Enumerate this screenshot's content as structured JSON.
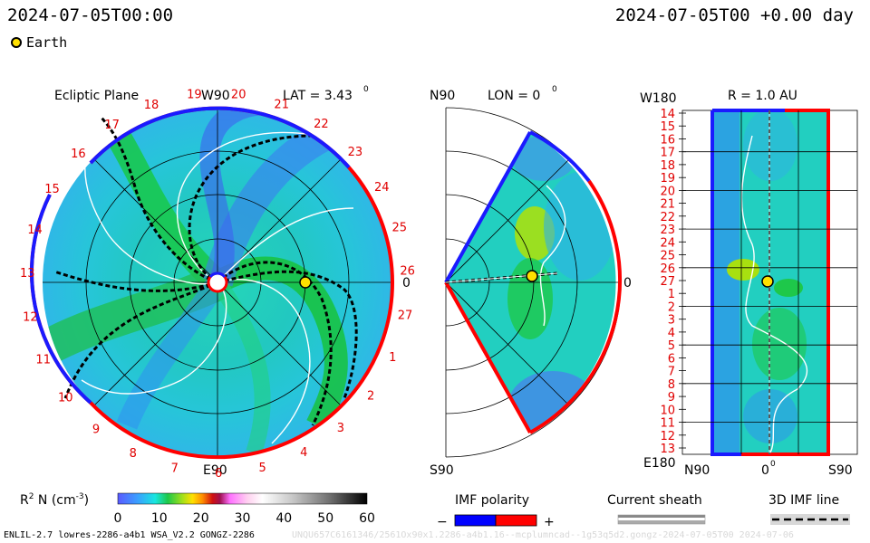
{
  "header": {
    "left_time": "2024-07-05T00:00",
    "right_time": "2024-07-05T00 +0.00 day"
  },
  "legend": {
    "earth_label": "Earth"
  },
  "panels": {
    "ecliptic": {
      "title": "Ecliptic Plane",
      "top_label": "W90",
      "bottom_label": "E90",
      "right_label": "0",
      "lat_label": "LAT = 3.43",
      "degree_mark": "0",
      "rotation_numbers": [
        "19",
        "20",
        "21",
        "22",
        "23",
        "24",
        "25",
        "26",
        "27",
        "1",
        "2",
        "3",
        "4",
        "5",
        "6",
        "7",
        "8",
        "9",
        "10",
        "11",
        "12",
        "13",
        "14",
        "15",
        "16",
        "17",
        "18"
      ]
    },
    "meridional": {
      "top_label": "N90",
      "bottom_label": "S90",
      "lon_label": "LON = 0",
      "right_label": "0",
      "degree_mark": "0"
    },
    "radial": {
      "top_left_label": "W180",
      "r_label": "R = 1.0 AU",
      "bottom_left_label": "E180",
      "x_left": "N90",
      "x_mid": "0",
      "x_right": "S90",
      "degree_mark": "0",
      "y_ticks": [
        "14",
        "15",
        "16",
        "17",
        "18",
        "19",
        "20",
        "21",
        "22",
        "23",
        "24",
        "25",
        "26",
        "27",
        "1",
        "2",
        "3",
        "4",
        "5",
        "6",
        "7",
        "8",
        "9",
        "10",
        "11",
        "12",
        "13"
      ]
    }
  },
  "colorbar": {
    "label": "R",
    "label_sup": "2",
    "label_rest": " N (cm",
    "label_exp": "-3",
    "label_close": ")",
    "ticks": [
      "0",
      "10",
      "20",
      "30",
      "40",
      "50",
      "60"
    ],
    "range": [
      0,
      60
    ]
  },
  "imf_polarity": {
    "title": "IMF polarity",
    "minus": "−",
    "plus": "+",
    "neg_color": "#0000ff",
    "pos_color": "#ff0000"
  },
  "current_sheath": {
    "title": "Current sheath"
  },
  "imf_line": {
    "title": "3D IMF line"
  },
  "footer": {
    "left": "ENLIL-2.7 lowres-2286-a4b1 WSA_V2.2 GONGZ-2286",
    "right": "UNQU657C6161346/2561Ox90x1.2286-a4b1.16--mcplumncad--1g53q5d2.gongz-2024-07-05T00     2024-07-06"
  },
  "colors": {
    "positive": "#ff0000",
    "negative": "#1a1aff",
    "earth": "#ffe000",
    "number_text": "#e00000"
  }
}
